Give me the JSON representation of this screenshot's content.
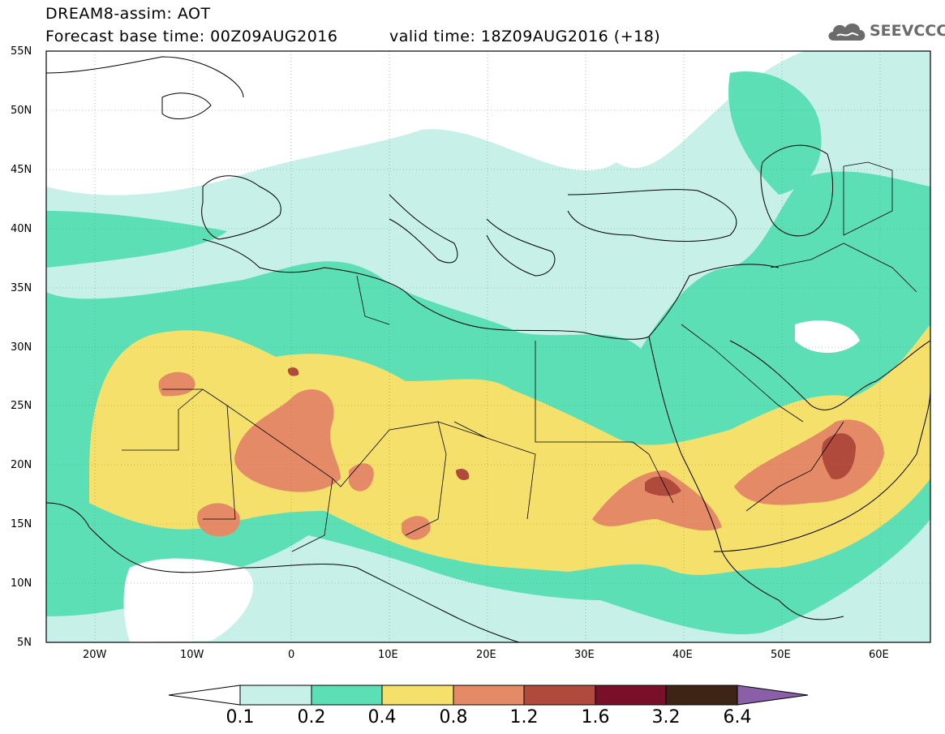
{
  "header": {
    "line1": "DREAM8-assim: AOT",
    "line2": "Forecast base time: 00Z09AUG2016",
    "valid": "valid time: 18Z09AUG2016 (+18)",
    "logo_text": "SEEVCCC"
  },
  "axes": {
    "lat_labels": [
      "55N",
      "50N",
      "45N",
      "40N",
      "35N",
      "30N",
      "25N",
      "20N",
      "15N",
      "10N",
      "5N"
    ],
    "lon_labels": [
      "20W",
      "10W",
      "0",
      "10E",
      "20E",
      "30E",
      "40E",
      "50E",
      "60E"
    ]
  },
  "colorbar": {
    "labels": [
      "0.1",
      "0.2",
      "0.4",
      "0.8",
      "1.2",
      "1.6",
      "3.2",
      "6.4"
    ],
    "colors": [
      "#c6f0e8",
      "#5ddfb6",
      "#f5e06c",
      "#e48a66",
      "#b04a3d",
      "#7a0f2a",
      "#3d2414",
      "#8a5fa8"
    ]
  }
}
